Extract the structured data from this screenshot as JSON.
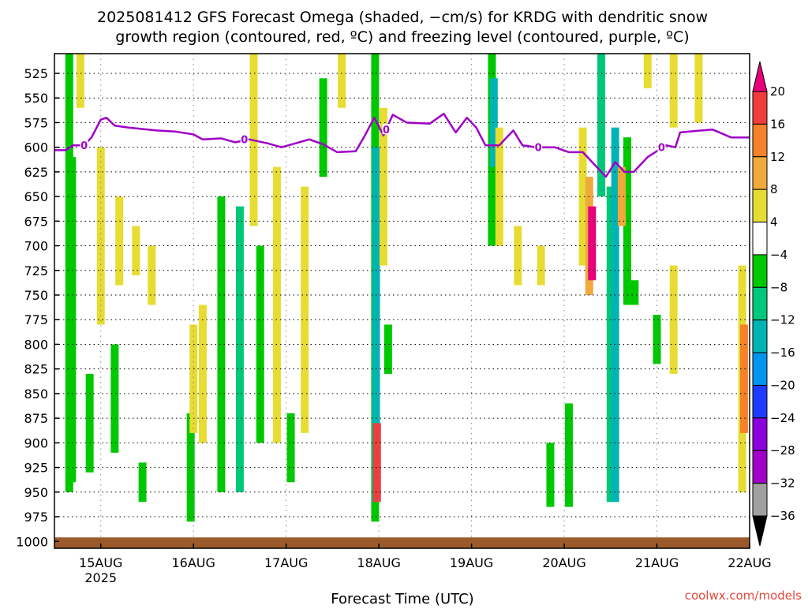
{
  "chart_data": {
    "type": "heatmap",
    "title_lines": [
      "2025081412 GFS Forecast Omega (shaded, −cm/s) for KRDG with dendritic snow",
      "growth region (contoured, red, ºC) and freezing level (contoured, purple, ºC)"
    ],
    "xlabel": "Forecast Time (UTC)",
    "credit": "coolwx.com/models",
    "x_ticks": [
      {
        "label": "15AUG",
        "sub": "2025",
        "day": 1
      },
      {
        "label": "16AUG",
        "sub": "",
        "day": 2
      },
      {
        "label": "17AUG",
        "sub": "",
        "day": 3
      },
      {
        "label": "18AUG",
        "sub": "",
        "day": 4
      },
      {
        "label": "19AUG",
        "sub": "",
        "day": 5
      },
      {
        "label": "20AUG",
        "sub": "",
        "day": 6
      },
      {
        "label": "21AUG",
        "sub": "",
        "day": 7
      },
      {
        "label": "22AUG",
        "sub": "",
        "day": 8
      }
    ],
    "xlim": [
      0.5,
      8.0
    ],
    "y_ticks": [
      525,
      550,
      575,
      600,
      625,
      650,
      675,
      700,
      725,
      750,
      775,
      800,
      825,
      850,
      875,
      900,
      925,
      950,
      975,
      1000
    ],
    "ylim_hpa": [
      505,
      1007
    ],
    "colorbar": {
      "labels": [
        "20",
        "16",
        "12",
        "8",
        "4",
        "−4",
        "−8",
        "−12",
        "−16",
        "−20",
        "−24",
        "−28",
        "−32",
        "−36"
      ],
      "bins": [
        "#e8007a",
        "#f03c3c",
        "#f5822a",
        "#f0aa3c",
        "#e6dc32",
        "#ffffff",
        "#00c800",
        "#00c87a",
        "#00b4b4",
        "#0096f0",
        "#1e3cff",
        "#8c00dc",
        "#a000c8",
        "#a0a0a0",
        "#000000"
      ]
    },
    "freezing_level": {
      "color": "#a000c8",
      "label": "0",
      "points": [
        [
          0.5,
          603
        ],
        [
          0.62,
          603
        ],
        [
          0.7,
          598
        ],
        [
          0.82,
          598
        ],
        [
          0.9,
          590
        ],
        [
          1.0,
          572
        ],
        [
          1.06,
          570
        ],
        [
          1.15,
          578
        ],
        [
          1.3,
          580
        ],
        [
          1.6,
          583
        ],
        [
          1.8,
          584
        ],
        [
          2.0,
          587
        ],
        [
          2.1,
          592
        ],
        [
          2.3,
          591
        ],
        [
          2.45,
          595
        ],
        [
          2.6,
          592
        ],
        [
          2.8,
          596
        ],
        [
          2.95,
          600
        ],
        [
          3.1,
          596
        ],
        [
          3.25,
          592
        ],
        [
          3.4,
          597
        ],
        [
          3.55,
          605
        ],
        [
          3.75,
          604
        ],
        [
          3.85,
          588
        ],
        [
          3.95,
          570
        ],
        [
          4.05,
          588
        ],
        [
          4.15,
          567
        ],
        [
          4.3,
          575
        ],
        [
          4.55,
          576
        ],
        [
          4.7,
          566
        ],
        [
          4.83,
          585
        ],
        [
          4.95,
          570
        ],
        [
          5.05,
          580
        ],
        [
          5.15,
          598
        ],
        [
          5.3,
          598
        ],
        [
          5.45,
          583
        ],
        [
          5.55,
          598
        ],
        [
          5.7,
          600
        ],
        [
          5.9,
          600
        ],
        [
          6.05,
          605
        ],
        [
          6.2,
          605
        ],
        [
          6.35,
          620
        ],
        [
          6.45,
          630
        ],
        [
          6.55,
          615
        ],
        [
          6.65,
          625
        ],
        [
          6.75,
          625
        ],
        [
          6.9,
          610
        ],
        [
          7.1,
          598
        ],
        [
          7.2,
          600
        ],
        [
          7.25,
          585
        ],
        [
          7.35,
          584
        ],
        [
          7.6,
          582
        ],
        [
          7.8,
          590
        ],
        [
          8.0,
          590
        ]
      ],
      "label_positions": [
        [
          0.82,
          598
        ],
        [
          2.55,
          592
        ],
        [
          4.08,
          582
        ],
        [
          5.72,
          600
        ],
        [
          7.05,
          600
        ]
      ]
    },
    "omega_regions": [
      {
        "day": 0.66,
        "p": [
          505,
          950
        ],
        "bin": 6
      },
      {
        "day": 0.69,
        "p": [
          610,
          940
        ],
        "bin": 6
      },
      {
        "day": 0.88,
        "p": [
          830,
          930
        ],
        "bin": 6
      },
      {
        "day": 1.15,
        "p": [
          800,
          910
        ],
        "bin": 6
      },
      {
        "day": 1.45,
        "p": [
          920,
          960
        ],
        "bin": 6
      },
      {
        "day": 1.97,
        "p": [
          870,
          980
        ],
        "bin": 6
      },
      {
        "day": 2.3,
        "p": [
          650,
          950
        ],
        "bin": 6
      },
      {
        "day": 2.5,
        "p": [
          660,
          950
        ],
        "bin": 7
      },
      {
        "day": 2.72,
        "p": [
          700,
          900
        ],
        "bin": 6
      },
      {
        "day": 3.05,
        "p": [
          870,
          940
        ],
        "bin": 6
      },
      {
        "day": 3.4,
        "p": [
          530,
          630
        ],
        "bin": 6
      },
      {
        "day": 3.96,
        "p": [
          505,
          980
        ],
        "bin": 6
      },
      {
        "day": 3.97,
        "p": [
          600,
          960
        ],
        "bin": 8
      },
      {
        "day": 3.98,
        "p": [
          880,
          960
        ],
        "bin": 1
      },
      {
        "day": 4.1,
        "p": [
          780,
          830
        ],
        "bin": 6
      },
      {
        "day": 5.22,
        "p": [
          505,
          700
        ],
        "bin": 6
      },
      {
        "day": 5.24,
        "p": [
          530,
          620
        ],
        "bin": 8
      },
      {
        "day": 5.85,
        "p": [
          900,
          965
        ],
        "bin": 6
      },
      {
        "day": 6.05,
        "p": [
          860,
          965
        ],
        "bin": 6
      },
      {
        "day": 6.4,
        "p": [
          505,
          650
        ],
        "bin": 7
      },
      {
        "day": 6.5,
        "p": [
          640,
          960
        ],
        "bin": 7
      },
      {
        "day": 6.55,
        "p": [
          580,
          960
        ],
        "bin": 8
      },
      {
        "day": 6.68,
        "p": [
          590,
          760
        ],
        "bin": 6
      },
      {
        "day": 6.76,
        "p": [
          735,
          760
        ],
        "bin": 6
      },
      {
        "day": 7.0,
        "p": [
          770,
          820
        ],
        "bin": 6
      }
    ],
    "positive_regions": [
      {
        "day": 0.78,
        "p": [
          505,
          560
        ],
        "bin": 4
      },
      {
        "day": 1.0,
        "p": [
          600,
          780
        ],
        "bin": 4
      },
      {
        "day": 1.2,
        "p": [
          650,
          740
        ],
        "bin": 4
      },
      {
        "day": 1.38,
        "p": [
          680,
          730
        ],
        "bin": 4
      },
      {
        "day": 1.55,
        "p": [
          700,
          760
        ],
        "bin": 4
      },
      {
        "day": 2.0,
        "p": [
          780,
          890
        ],
        "bin": 4
      },
      {
        "day": 2.1,
        "p": [
          760,
          900
        ],
        "bin": 4
      },
      {
        "day": 2.65,
        "p": [
          505,
          680
        ],
        "bin": 4
      },
      {
        "day": 2.9,
        "p": [
          620,
          900
        ],
        "bin": 4
      },
      {
        "day": 3.2,
        "p": [
          640,
          890
        ],
        "bin": 4
      },
      {
        "day": 3.6,
        "p": [
          505,
          560
        ],
        "bin": 4
      },
      {
        "day": 4.05,
        "p": [
          560,
          720
        ],
        "bin": 4
      },
      {
        "day": 5.3,
        "p": [
          580,
          700
        ],
        "bin": 4
      },
      {
        "day": 5.5,
        "p": [
          680,
          740
        ],
        "bin": 4
      },
      {
        "day": 5.75,
        "p": [
          700,
          740
        ],
        "bin": 4
      },
      {
        "day": 6.2,
        "p": [
          580,
          720
        ],
        "bin": 4
      },
      {
        "day": 6.27,
        "p": [
          630,
          750
        ],
        "bin": 3
      },
      {
        "day": 6.3,
        "p": [
          660,
          735
        ],
        "bin": 0
      },
      {
        "day": 6.62,
        "p": [
          620,
          680
        ],
        "bin": 3
      },
      {
        "day": 6.9,
        "p": [
          505,
          540
        ],
        "bin": 4
      },
      {
        "day": 7.18,
        "p": [
          505,
          580
        ],
        "bin": 4
      },
      {
        "day": 7.45,
        "p": [
          505,
          575
        ],
        "bin": 4
      },
      {
        "day": 7.18,
        "p": [
          720,
          830
        ],
        "bin": 4
      },
      {
        "day": 7.92,
        "p": [
          720,
          950
        ],
        "bin": 4
      },
      {
        "day": 7.94,
        "p": [
          780,
          890
        ],
        "bin": 2
      }
    ],
    "surface": {
      "color": "#9c5a2c",
      "top_hpa": 996,
      "bottom_hpa": 1007
    }
  }
}
